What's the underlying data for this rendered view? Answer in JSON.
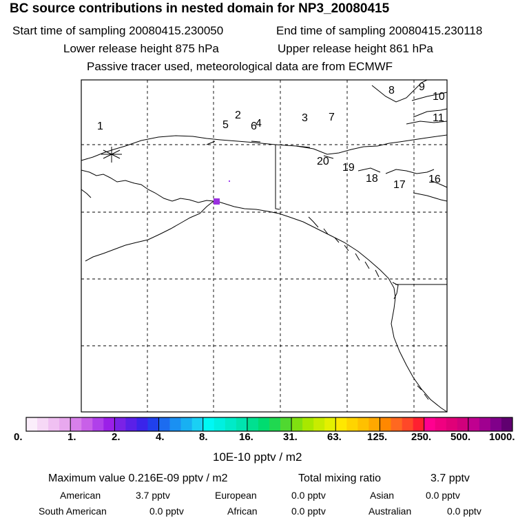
{
  "header": {
    "title": "BC  source contributions in nested domain for NP3_20080415",
    "start_time": "Start time of sampling 20080415.230050",
    "end_time": "End time of sampling 20080415.230118",
    "lower_height": "Lower release height  875 hPa",
    "upper_height": "Upper release height  861 hPa",
    "tracer_note": "Passive tracer used, meteorological data are from ECMWF"
  },
  "map": {
    "markers": [
      {
        "label": "1"
      },
      {
        "label": "2"
      },
      {
        "label": "3"
      },
      {
        "label": "4"
      },
      {
        "label": "5"
      },
      {
        "label": "6"
      },
      {
        "label": "7"
      },
      {
        "label": "8"
      },
      {
        "label": "9"
      },
      {
        "label": "10"
      },
      {
        "label": "11"
      },
      {
        "label": "16"
      },
      {
        "label": "17"
      },
      {
        "label": "18"
      },
      {
        "label": "19"
      },
      {
        "label": "20"
      }
    ],
    "hotspot_color": "#9a30e0",
    "source_color": "#a040f0"
  },
  "colorbar": {
    "ticks": [
      "0.",
      "1.",
      "2.",
      "4.",
      "8.",
      "16.",
      "31.",
      "63.",
      "125.",
      "250.",
      "500.",
      "1000."
    ],
    "colors": [
      "#fbeefb",
      "#f6d8f6",
      "#f0c0f2",
      "#e8a8ee",
      "#d880ea",
      "#c860e8",
      "#b040ea",
      "#9b20e8",
      "#7a22e6",
      "#5a20e8",
      "#3a24ea",
      "#2040ec",
      "#1c6cf0",
      "#1a90f2",
      "#18b0f2",
      "#1ad0f4",
      "#00f8f4",
      "#00f0e0",
      "#00eac8",
      "#00e4b0",
      "#00e090",
      "#00dc70",
      "#20d850",
      "#50d830",
      "#80e010",
      "#a8e800",
      "#c8ec00",
      "#e4f000",
      "#ffe800",
      "#ffd400",
      "#ffc000",
      "#ffa800",
      "#ff8800",
      "#ff6820",
      "#ff4828",
      "#ff2030",
      "#ff0090",
      "#f00080",
      "#e00078",
      "#d0007c",
      "#c00090",
      "#a00090",
      "#80008a",
      "#600070"
    ],
    "unit": "10E-10 pptv / m2"
  },
  "stats": {
    "maximum": "Maximum value  0.216E-09 pptv / m2",
    "total_label": "Total mixing ratio",
    "total_value": "3.7 pptv",
    "american_label": "American",
    "american_value": "3.7 pptv",
    "european_label": "European",
    "european_value": "0.0 pptv",
    "asian_label": "Asian",
    "asian_value": "0.0 pptv",
    "south_american_label": "South American",
    "south_american_value": "0.0 pptv",
    "african_label": "African",
    "african_value": "0.0 pptv",
    "australian_label": "Australian",
    "australian_value": "0.0 pptv"
  }
}
